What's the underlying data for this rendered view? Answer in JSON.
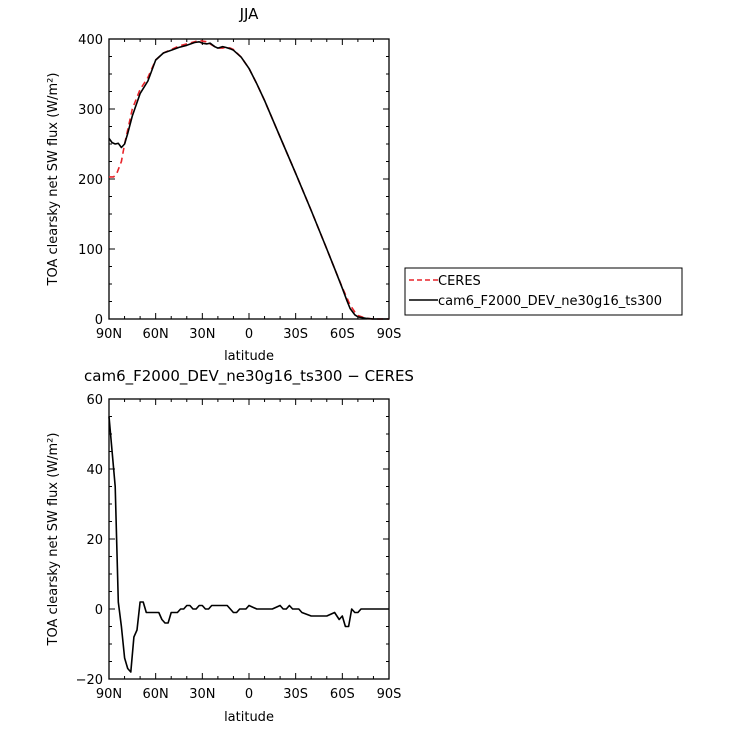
{
  "chart_data": [
    {
      "type": "line",
      "title": "JJA",
      "xlabel": "latitude",
      "ylabel": "TOA clearsky net SW flux (W/m²)",
      "xlim": [
        90,
        -90
      ],
      "ylim": [
        0,
        400
      ],
      "xticks": [
        90,
        60,
        30,
        0,
        -30,
        -60,
        -90
      ],
      "xtick_labels": [
        "90N",
        "60N",
        "30N",
        "0",
        "30S",
        "60S",
        "90S"
      ],
      "yticks": [
        0,
        100,
        200,
        300,
        400
      ],
      "ytick_labels": [
        "0",
        "100",
        "200",
        "300",
        "400"
      ],
      "legend_position": "right",
      "series": [
        {
          "name": "CERES",
          "color": "#e8242a",
          "dash": true,
          "x": [
            90,
            87,
            85,
            82,
            80,
            75,
            70,
            65,
            60,
            55,
            50,
            45,
            40,
            35,
            32,
            30,
            27,
            25,
            22,
            20,
            17,
            15,
            12,
            10,
            5,
            0,
            -5,
            -10,
            -20,
            -30,
            -40,
            -50,
            -55,
            -60,
            -63,
            -65,
            -68,
            -70,
            -75,
            -80,
            -85,
            -90
          ],
          "y": [
            203,
            203,
            208,
            225,
            250,
            300,
            328,
            345,
            370,
            380,
            385,
            390,
            393,
            396,
            398,
            397,
            396,
            393,
            389,
            387,
            387,
            388,
            387,
            385,
            374,
            358,
            336,
            312,
            260,
            208,
            155,
            100,
            72,
            45,
            30,
            20,
            10,
            5,
            1,
            0,
            0,
            0
          ]
        },
        {
          "name": "cam6_F2000_DEV_ne30g16_ts300",
          "color": "#000000",
          "dash": false,
          "x": [
            90,
            88,
            86,
            84,
            82,
            80,
            78,
            75,
            70,
            65,
            60,
            55,
            50,
            45,
            40,
            35,
            32,
            30,
            27,
            25,
            22,
            20,
            17,
            15,
            12,
            10,
            5,
            0,
            -5,
            -10,
            -20,
            -30,
            -40,
            -50,
            -55,
            -60,
            -63,
            -65,
            -68,
            -70,
            -75,
            -80,
            -85,
            -90
          ],
          "y": [
            258,
            252,
            250,
            251,
            245,
            250,
            265,
            290,
            322,
            340,
            370,
            380,
            384,
            388,
            391,
            395,
            396,
            394,
            393,
            394,
            389,
            387,
            389,
            388,
            386,
            384,
            374,
            358,
            336,
            312,
            260,
            208,
            155,
            100,
            72,
            44,
            26,
            15,
            6,
            3,
            1,
            0,
            0,
            0
          ]
        }
      ]
    },
    {
      "type": "line",
      "title": "cam6_F2000_DEV_ne30g16_ts300 − CERES",
      "xlabel": "latitude",
      "ylabel": "TOA clearsky net SW flux (W/m²)",
      "xlim": [
        90,
        -90
      ],
      "ylim": [
        -20,
        60
      ],
      "xticks": [
        90,
        60,
        30,
        0,
        -30,
        -60,
        -90
      ],
      "xtick_labels": [
        "90N",
        "60N",
        "30N",
        "0",
        "30S",
        "60S",
        "90S"
      ],
      "yticks": [
        -20,
        0,
        20,
        40,
        60
      ],
      "ytick_labels": [
        "−20",
        "0",
        "20",
        "40",
        "60"
      ],
      "series": [
        {
          "color": "#000000",
          "dash": false,
          "x": [
            90,
            88,
            86,
            84,
            82,
            80,
            78,
            76,
            74,
            72,
            70,
            68,
            66,
            64,
            62,
            60,
            58,
            56,
            54,
            52,
            50,
            48,
            46,
            44,
            42,
            40,
            38,
            36,
            34,
            32,
            30,
            28,
            26,
            24,
            22,
            20,
            18,
            16,
            14,
            12,
            10,
            8,
            6,
            4,
            2,
            0,
            -5,
            -10,
            -15,
            -20,
            -22,
            -24,
            -26,
            -28,
            -30,
            -32,
            -34,
            -40,
            -45,
            -50,
            -55,
            -58,
            -60,
            -62,
            -64,
            -66,
            -68,
            -70,
            -72,
            -75,
            -80,
            -85,
            -90
          ],
          "y": [
            55,
            45,
            35,
            2,
            -5,
            -14,
            -17,
            -18,
            -8,
            -6,
            2,
            2,
            -1,
            -1,
            -1,
            -1,
            -1,
            -3,
            -4,
            -4,
            -1,
            -1,
            -1,
            0,
            0,
            1,
            1,
            0,
            0,
            1,
            1,
            0,
            0,
            1,
            1,
            1,
            1,
            1,
            1,
            0,
            -1,
            -1,
            0,
            0,
            0,
            1,
            0,
            0,
            0,
            1,
            0,
            0,
            1,
            0,
            0,
            0,
            -1,
            -2,
            -2,
            -2,
            -1,
            -3,
            -2,
            -5,
            -5,
            0,
            -1,
            -1,
            0,
            0,
            0,
            0,
            0
          ]
        }
      ]
    }
  ]
}
